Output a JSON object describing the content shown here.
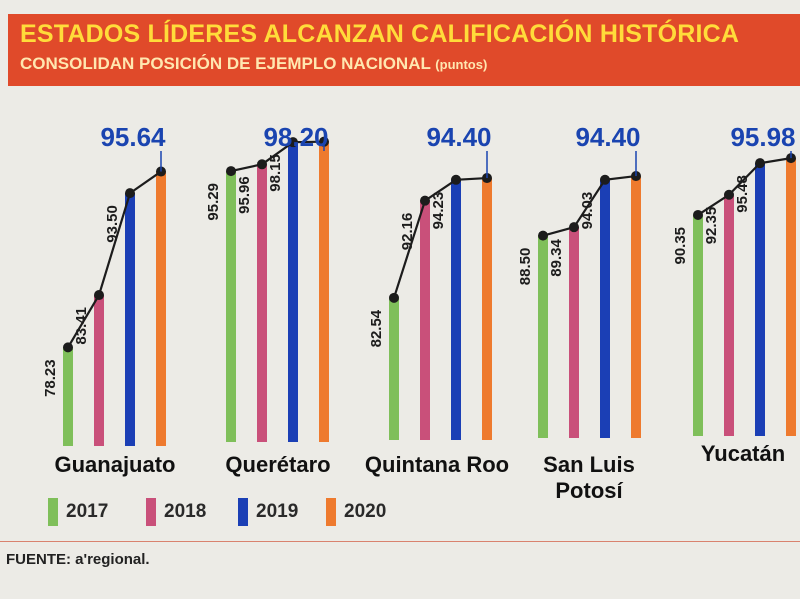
{
  "header": {
    "title": "ESTADOS LÍDERES ALCANZAN CALIFICACIÓN HISTÓRICA",
    "subtitle": "CONSOLIDAN POSICIÓN DE EJEMPLO NACIONAL",
    "unit": "(puntos)"
  },
  "colors": {
    "2017": "#7fbf5a",
    "2018": "#c9507a",
    "2019": "#1b3fb5",
    "2020": "#ee7a2e",
    "highlight": "#1a44b0",
    "header_bg": "#e04a2a",
    "title": "#ffdc3a"
  },
  "chart_data": {
    "type": "bar",
    "categories": [
      "Guanajuato",
      "Querétaro",
      "Quintana Roo",
      "San Luis Potosí",
      "Yucatán"
    ],
    "series": [
      {
        "name": "2017",
        "values": [
          78.23,
          95.29,
          82.54,
          88.5,
          90.35
        ]
      },
      {
        "name": "2018",
        "values": [
          83.41,
          95.96,
          92.16,
          89.34,
          92.35
        ]
      },
      {
        "name": "2019",
        "values": [
          93.5,
          98.15,
          94.23,
          94.03,
          95.48
        ]
      },
      {
        "name": "2020",
        "values": [
          95.64,
          98.2,
          94.4,
          94.4,
          95.98
        ]
      }
    ],
    "value_labels": {
      "Guanajuato": [
        "78.23",
        "83.41",
        "93.50",
        "95.64"
      ],
      "Querétaro": [
        "95.29",
        "95.96",
        "98.15",
        "98.20"
      ],
      "Quintana Roo": [
        "82.54",
        "92.16",
        "94.23",
        "94.40"
      ],
      "San Luis Potosí": [
        "88.50",
        "89.34",
        "94.03",
        "94.40"
      ],
      "Yucatán": [
        "90.35",
        "92.35",
        "95.48",
        "95.98"
      ]
    },
    "legend": [
      "2017",
      "2018",
      "2019",
      "2020"
    ],
    "legend_position": "bottom-left",
    "grid": false
  },
  "source": {
    "label": "FUENTE:",
    "brand": "a'regional."
  }
}
